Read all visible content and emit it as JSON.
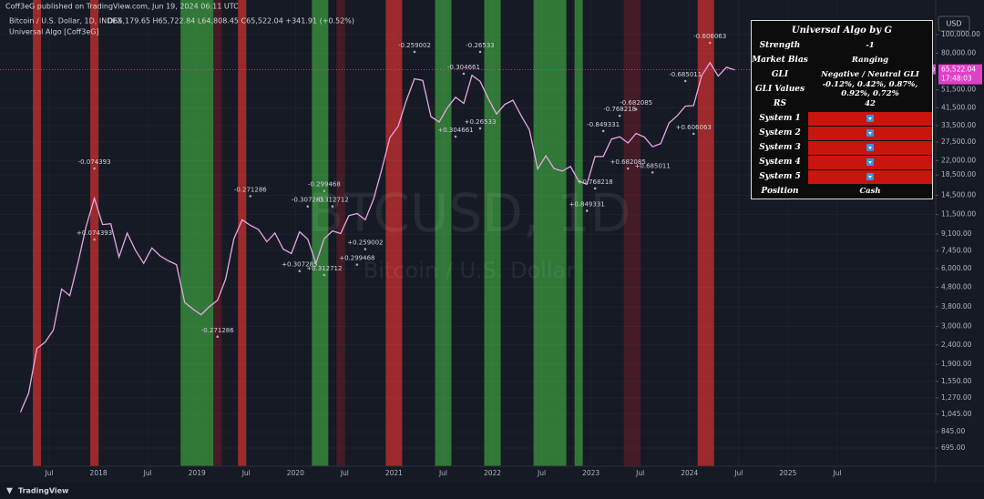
{
  "header": {
    "published": "Coff3eG published on TradingView.com, Jun 19, 2024 06:11 UTC"
  },
  "chart_data": {
    "type": "line",
    "title": "Bitcoin / U.S. Dollar, 1D, INDEX",
    "ohlc": "O65,179.65 H65,722.84 L64,808.45 C65,522.04 +341.91 (+0.52%)",
    "indicator": "Universal Algo [Coff3eG]",
    "watermark": [
      "BTCUSD, 1D",
      "Bitcoin / U.S. Dollar"
    ],
    "currency": "USD",
    "price_label": {
      "symbol": "BTCUSD",
      "price": "65,522.04",
      "countdown": "17:48:03"
    },
    "color": "#e7a6e3",
    "log_scale": true,
    "grid": true,
    "xlim": [
      "2017-01",
      "2026-07"
    ],
    "ylim": [
      571,
      124500
    ],
    "x": [
      "2017-03",
      "2017-04",
      "2017-05",
      "2017-06",
      "2017-07",
      "2017-08",
      "2017-09",
      "2017-10",
      "2017-11",
      "2017-12",
      "2018-01",
      "2018-02",
      "2018-03",
      "2018-04",
      "2018-05",
      "2018-06",
      "2018-07",
      "2018-08",
      "2018-09",
      "2018-10",
      "2018-11",
      "2018-12",
      "2019-01",
      "2019-02",
      "2019-03",
      "2019-04",
      "2019-05",
      "2019-06",
      "2019-07",
      "2019-08",
      "2019-09",
      "2019-10",
      "2019-11",
      "2019-12",
      "2020-01",
      "2020-02",
      "2020-03",
      "2020-04",
      "2020-05",
      "2020-06",
      "2020-07",
      "2020-08",
      "2020-09",
      "2020-10",
      "2020-11",
      "2020-12",
      "2021-01",
      "2021-02",
      "2021-03",
      "2021-04",
      "2021-05",
      "2021-06",
      "2021-07",
      "2021-08",
      "2021-09",
      "2021-10",
      "2021-11",
      "2021-12",
      "2022-01",
      "2022-02",
      "2022-03",
      "2022-04",
      "2022-05",
      "2022-06",
      "2022-07",
      "2022-08",
      "2022-09",
      "2022-10",
      "2022-11",
      "2022-12",
      "2023-01",
      "2023-02",
      "2023-03",
      "2023-04",
      "2023-05",
      "2023-06",
      "2023-07",
      "2023-08",
      "2023-09",
      "2023-10",
      "2023-11",
      "2023-12",
      "2024-01",
      "2024-02",
      "2024-03",
      "2024-04",
      "2024-05",
      "2024-06"
    ],
    "values": [
      1070,
      1350,
      2300,
      2480,
      2870,
      4700,
      4340,
      6450,
      10000,
      14000,
      10200,
      10300,
      6900,
      9200,
      7500,
      6400,
      7700,
      7000,
      6600,
      6300,
      4000,
      3700,
      3450,
      3800,
      4100,
      5300,
      8600,
      10800,
      10100,
      9600,
      8300,
      9200,
      7600,
      7200,
      9350,
      8550,
      6400,
      8600,
      9450,
      9150,
      11350,
      11650,
      10800,
      13800,
      19700,
      29000,
      33100,
      45200,
      58800,
      57700,
      37300,
      35000,
      41500,
      47100,
      43800,
      61300,
      57000,
      46300,
      38500,
      43200,
      45500,
      37700,
      31800,
      19900,
      23300,
      20000,
      19400,
      20500,
      17200,
      16550,
      23100,
      23100,
      28500,
      29300,
      27200,
      30500,
      29200,
      26000,
      27000,
      34500,
      37700,
      42300,
      42600,
      61200,
      71300,
      60700,
      67500,
      65522
    ],
    "xticks": [
      {
        "value": "2017-07",
        "label": "Jul"
      },
      {
        "value": "2018-01",
        "label": "2018"
      },
      {
        "value": "2018-07",
        "label": "Jul"
      },
      {
        "value": "2019-01",
        "label": "2019"
      },
      {
        "value": "2019-07",
        "label": "Jul"
      },
      {
        "value": "2020-01",
        "label": "2020"
      },
      {
        "value": "2020-07",
        "label": "Jul"
      },
      {
        "value": "2021-01",
        "label": "2021"
      },
      {
        "value": "2021-07",
        "label": "Jul"
      },
      {
        "value": "2022-01",
        "label": "2022"
      },
      {
        "value": "2022-07",
        "label": "Jul"
      },
      {
        "value": "2023-01",
        "label": "2023"
      },
      {
        "value": "2023-07",
        "label": "Jul"
      },
      {
        "value": "2024-01",
        "label": "2024"
      },
      {
        "value": "2024-07",
        "label": "Jul"
      },
      {
        "value": "2025-01",
        "label": "2025"
      },
      {
        "value": "2025-07",
        "label": "Jul"
      }
    ],
    "yticks": [
      {
        "value": 100000,
        "label": "100,000.00"
      },
      {
        "value": 80000,
        "label": "80,000.00"
      },
      {
        "value": 51500,
        "label": "51,500.00"
      },
      {
        "value": 41500,
        "label": "41,500.00"
      },
      {
        "value": 33500,
        "label": "33,500.00"
      },
      {
        "value": 27500,
        "label": "27,500.00"
      },
      {
        "value": 22000,
        "label": "22,000.00"
      },
      {
        "value": 18500,
        "label": "18,500.00"
      },
      {
        "value": 14500,
        "label": "14,500.00"
      },
      {
        "value": 11500,
        "label": "11,500.00"
      },
      {
        "value": 9100,
        "label": "9,100.00"
      },
      {
        "value": 7450,
        "label": "7,450.00"
      },
      {
        "value": 6000,
        "label": "6,000.00"
      },
      {
        "value": 4800,
        "label": "4,800.00"
      },
      {
        "value": 3800,
        "label": "3,800.00"
      },
      {
        "value": 3000,
        "label": "3,000.00"
      },
      {
        "value": 2400,
        "label": "2,400.00"
      },
      {
        "value": 1900,
        "label": "1,900.00"
      },
      {
        "value": 1550,
        "label": "1,550.00"
      },
      {
        "value": 1270,
        "label": "1,270.00"
      },
      {
        "value": 1045,
        "label": "1,045.00"
      },
      {
        "value": 845,
        "label": "845.00"
      },
      {
        "value": 695,
        "label": "695.00"
      }
    ],
    "bands": [
      {
        "start": "2017-05",
        "end": "2017-05",
        "color": "rgba(190,45,45,0.8)"
      },
      {
        "start": "2017-12",
        "end": "2017-12",
        "color": "rgba(190,45,45,0.8)"
      },
      {
        "start": "2018-11",
        "end": "2019-02",
        "color": "rgba(56,142,60,0.8)"
      },
      {
        "start": "2019-03",
        "end": "2019-03",
        "color": "rgba(110,30,40,0.55)"
      },
      {
        "start": "2019-06",
        "end": "2019-06",
        "color": "rgba(190,45,45,0.8)"
      },
      {
        "start": "2020-03",
        "end": "2020-04",
        "color": "rgba(56,142,60,0.8)"
      },
      {
        "start": "2020-06",
        "end": "2020-06",
        "color": "rgba(110,30,40,0.55)"
      },
      {
        "start": "2020-12",
        "end": "2021-01",
        "color": "rgba(190,45,45,0.8)"
      },
      {
        "start": "2021-06",
        "end": "2021-07",
        "color": "rgba(56,142,60,0.8)"
      },
      {
        "start": "2021-12",
        "end": "2022-01",
        "color": "rgba(56,142,60,0.8)"
      },
      {
        "start": "2022-06",
        "end": "2022-09",
        "color": "rgba(56,142,60,0.8)"
      },
      {
        "start": "2022-11",
        "end": "2022-11",
        "color": "rgba(56,142,60,0.8)"
      },
      {
        "start": "2023-05",
        "end": "2023-06",
        "color": "rgba(110,30,40,0.55)"
      },
      {
        "start": "2024-02",
        "end": "2024-03",
        "color": "rgba(190,45,45,0.8)"
      }
    ],
    "annotations": [
      {
        "x": "2017-12",
        "y": 21600,
        "text": "-0.074393"
      },
      {
        "x": "2017-12",
        "y": 9200,
        "text": "+0.074393"
      },
      {
        "x": "2019-07",
        "y": 15500,
        "text": "-0.271286"
      },
      {
        "x": "2019-03",
        "y": 2860,
        "text": "-0.271286"
      },
      {
        "x": "2020-02",
        "y": 13700,
        "text": "-0.307285"
      },
      {
        "x": "2020-05",
        "y": 13700,
        "text": "-0.312712"
      },
      {
        "x": "2020-04",
        "y": 16500,
        "text": "-0.299468"
      },
      {
        "x": "2020-01",
        "y": 6300,
        "text": "+0.307285"
      },
      {
        "x": "2020-04",
        "y": 6000,
        "text": "+0.312712"
      },
      {
        "x": "2020-08",
        "y": 6800,
        "text": "+0.299468"
      },
      {
        "x": "2020-09",
        "y": 8200,
        "text": "+0.259002"
      },
      {
        "x": "2021-03",
        "y": 87800,
        "text": "-0.259002"
      },
      {
        "x": "2021-11",
        "y": 87800,
        "text": "-0.26533"
      },
      {
        "x": "2021-09",
        "y": 67500,
        "text": "-0.304661"
      },
      {
        "x": "2021-11",
        "y": 35000,
        "text": "+0.26533"
      },
      {
        "x": "2021-08",
        "y": 31700,
        "text": "+0.304661"
      },
      {
        "x": "2023-02",
        "y": 33900,
        "text": "-0.849331"
      },
      {
        "x": "2023-04",
        "y": 40700,
        "text": "-0.768218"
      },
      {
        "x": "2023-06",
        "y": 44000,
        "text": "-0.682085"
      },
      {
        "x": "2023-12",
        "y": 61800,
        "text": "-0.685011"
      },
      {
        "x": "2024-03",
        "y": 97800,
        "text": "-0.606063"
      },
      {
        "x": "2022-12",
        "y": 13000,
        "text": "+0.849331"
      },
      {
        "x": "2023-01",
        "y": 17000,
        "text": "+0.768218"
      },
      {
        "x": "2023-05",
        "y": 21600,
        "text": "+0.682085"
      },
      {
        "x": "2023-08",
        "y": 20600,
        "text": "+0.685011"
      },
      {
        "x": "2024-01",
        "y": 32800,
        "text": "+0.606063"
      }
    ]
  },
  "table": {
    "title": "Universal Algo by G",
    "rows": [
      [
        "Strength",
        "-1"
      ],
      [
        "Market Bias",
        "Ranging"
      ],
      [
        "GLI",
        "Negative / Neutral GLI"
      ],
      [
        "GLI Values",
        "-0.12%, 0.42%, 0.87%, 0.92%, 0.72%"
      ],
      [
        "RS",
        "42"
      ]
    ],
    "systems": [
      "System 1",
      "System 2",
      "System 3",
      "System 4",
      "System 5"
    ],
    "position": [
      "Position",
      "Cash"
    ]
  },
  "footer": {
    "brand": "TradingView"
  }
}
